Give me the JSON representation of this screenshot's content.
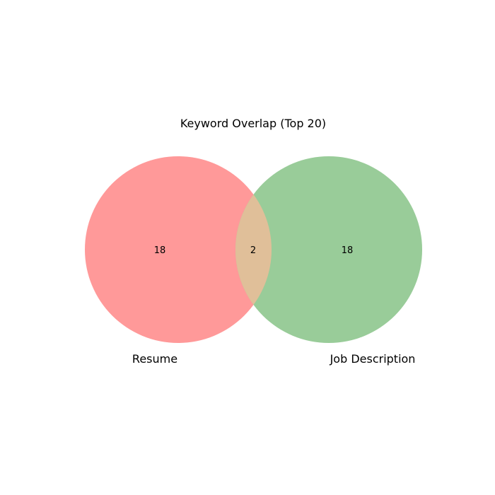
{
  "title": "Keyword Overlap (Top 20)",
  "sets": [
    {
      "label": "Resume",
      "only_count": "18",
      "color": "#ff9999"
    },
    {
      "label": "Job Description",
      "only_count": "18",
      "color": "#99cc99"
    }
  ],
  "intersection": {
    "count": "2",
    "color": "#e0bf99"
  }
}
